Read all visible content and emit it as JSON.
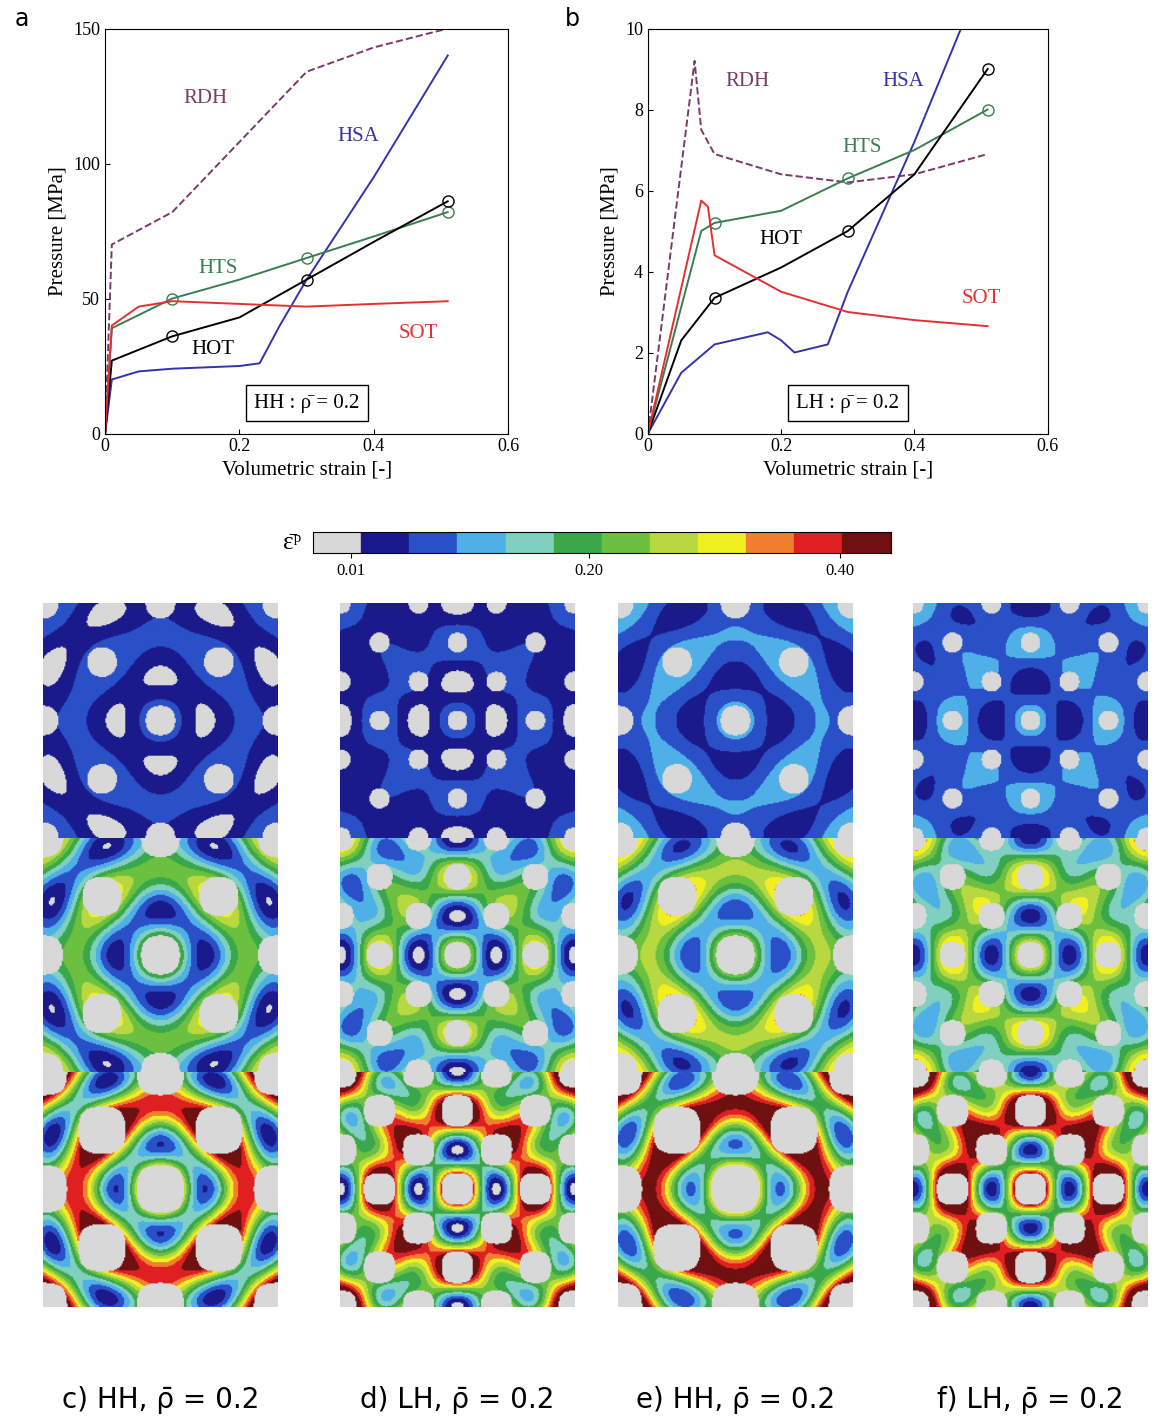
{
  "chart_data": [
    {
      "type": "line",
      "panel": "a",
      "annotation": "HH : ρ̄ = 0.2",
      "x_label": "Volumetric strain [-]",
      "y_label": "Pressure [MPa]",
      "xlim": [
        0,
        0.6
      ],
      "xticks": [
        0,
        0.2,
        0.4,
        0.6
      ],
      "ylim": [
        0,
        150
      ],
      "yticks": [
        0,
        50,
        100,
        150
      ],
      "series": [
        {
          "name": "RDH",
          "color": "#7a3b6b",
          "line_style": "dashed",
          "x": [
            0,
            0.01,
            0.1,
            0.2,
            0.3,
            0.4,
            0.51
          ],
          "values": [
            0,
            70,
            82,
            108,
            134,
            143,
            150
          ]
        },
        {
          "name": "HSA",
          "color": "#3333aa",
          "line_style": "solid",
          "x": [
            0,
            0.01,
            0.05,
            0.1,
            0.2,
            0.23,
            0.26,
            0.3,
            0.4,
            0.51
          ],
          "values": [
            0,
            20,
            23,
            24,
            25,
            26,
            40,
            57,
            95,
            140
          ]
        },
        {
          "name": "HTS",
          "color": "#3a7d50",
          "line_style": "solid",
          "marker": "circle",
          "x": [
            0,
            0.01,
            0.1,
            0.2,
            0.3,
            0.4,
            0.51
          ],
          "values": [
            0,
            39,
            50,
            57,
            65,
            73,
            82
          ],
          "marker_x": [
            0.1,
            0.3,
            0.51
          ]
        },
        {
          "name": "HOT",
          "color": "#000000",
          "line_style": "solid",
          "marker": "circle",
          "x": [
            0,
            0.01,
            0.05,
            0.1,
            0.2,
            0.3,
            0.4,
            0.51
          ],
          "values": [
            0,
            27,
            31,
            36,
            43,
            57,
            71,
            86
          ],
          "marker_x": [
            0.1,
            0.3,
            0.51
          ]
        },
        {
          "name": "SOT",
          "color": "#e53030",
          "line_style": "solid",
          "x": [
            0,
            0.01,
            0.05,
            0.1,
            0.2,
            0.3,
            0.4,
            0.51
          ],
          "values": [
            0,
            40,
            47,
            49,
            48,
            47,
            48,
            49
          ]
        }
      ]
    },
    {
      "type": "line",
      "panel": "b",
      "annotation": "LH : ρ̄ = 0.2",
      "x_label": "Volumetric strain [-]",
      "y_label": "Pressure [MPa]",
      "xlim": [
        0,
        0.6
      ],
      "xticks": [
        0,
        0.2,
        0.4,
        0.6
      ],
      "ylim": [
        0,
        10
      ],
      "yticks": [
        0,
        2,
        4,
        6,
        8,
        10
      ],
      "series": [
        {
          "name": "RDH",
          "color": "#7a3b6b",
          "line_style": "dashed",
          "x": [
            0,
            0.07,
            0.08,
            0.1,
            0.2,
            0.3,
            0.4,
            0.51
          ],
          "values": [
            0,
            9.2,
            7.5,
            6.9,
            6.4,
            6.2,
            6.4,
            6.9
          ]
        },
        {
          "name": "HSA",
          "color": "#3333aa",
          "line_style": "solid",
          "x": [
            0,
            0.05,
            0.1,
            0.18,
            0.2,
            0.22,
            0.27,
            0.3,
            0.4,
            0.47
          ],
          "values": [
            0,
            1.5,
            2.2,
            2.5,
            2.3,
            2.0,
            2.2,
            3.5,
            7.2,
            10
          ]
        },
        {
          "name": "HTS",
          "color": "#3a7d50",
          "line_style": "solid",
          "marker": "circle",
          "x": [
            0,
            0.08,
            0.1,
            0.2,
            0.3,
            0.4,
            0.51
          ],
          "values": [
            0,
            5.0,
            5.2,
            5.5,
            6.3,
            7.0,
            8.0
          ],
          "marker_x": [
            0.1,
            0.3,
            0.51
          ]
        },
        {
          "name": "HOT",
          "color": "#000000",
          "line_style": "solid",
          "marker": "circle",
          "x": [
            0,
            0.05,
            0.1,
            0.2,
            0.3,
            0.4,
            0.51
          ],
          "values": [
            0,
            2.3,
            3.35,
            4.1,
            5.0,
            6.4,
            9.0
          ],
          "marker_x": [
            0.1,
            0.3,
            0.51
          ]
        },
        {
          "name": "SOT",
          "color": "#e53030",
          "line_style": "solid",
          "x": [
            0,
            0.08,
            0.09,
            0.1,
            0.2,
            0.3,
            0.4,
            0.51
          ],
          "values": [
            0,
            5.75,
            5.6,
            4.4,
            3.5,
            3.0,
            2.8,
            2.65
          ]
        }
      ]
    }
  ],
  "colorbar": {
    "label": "ε̄ᵖ",
    "range": [
      -0.02,
      0.44
    ],
    "ticks": [
      0.01,
      {
        "value": 0.2,
        "label": "0.20"
      },
      {
        "value": 0.4,
        "label": "0.40"
      }
    ],
    "colors": [
      "#d8d8d8",
      "#1a1a8c",
      "#2a50c8",
      "#4fb0e8",
      "#7fd0c0",
      "#3aa84a",
      "#6cc040",
      "#b8d840",
      "#f0f020",
      "#f08030",
      "#e02020",
      "#701010"
    ]
  },
  "panels": [
    "c) HH, ρ̄ = 0.2",
    "d) LH, ρ̄ = 0.2",
    "e) HH, ρ̄ = 0.2",
    "f) LH, ρ̄ = 0.2"
  ]
}
